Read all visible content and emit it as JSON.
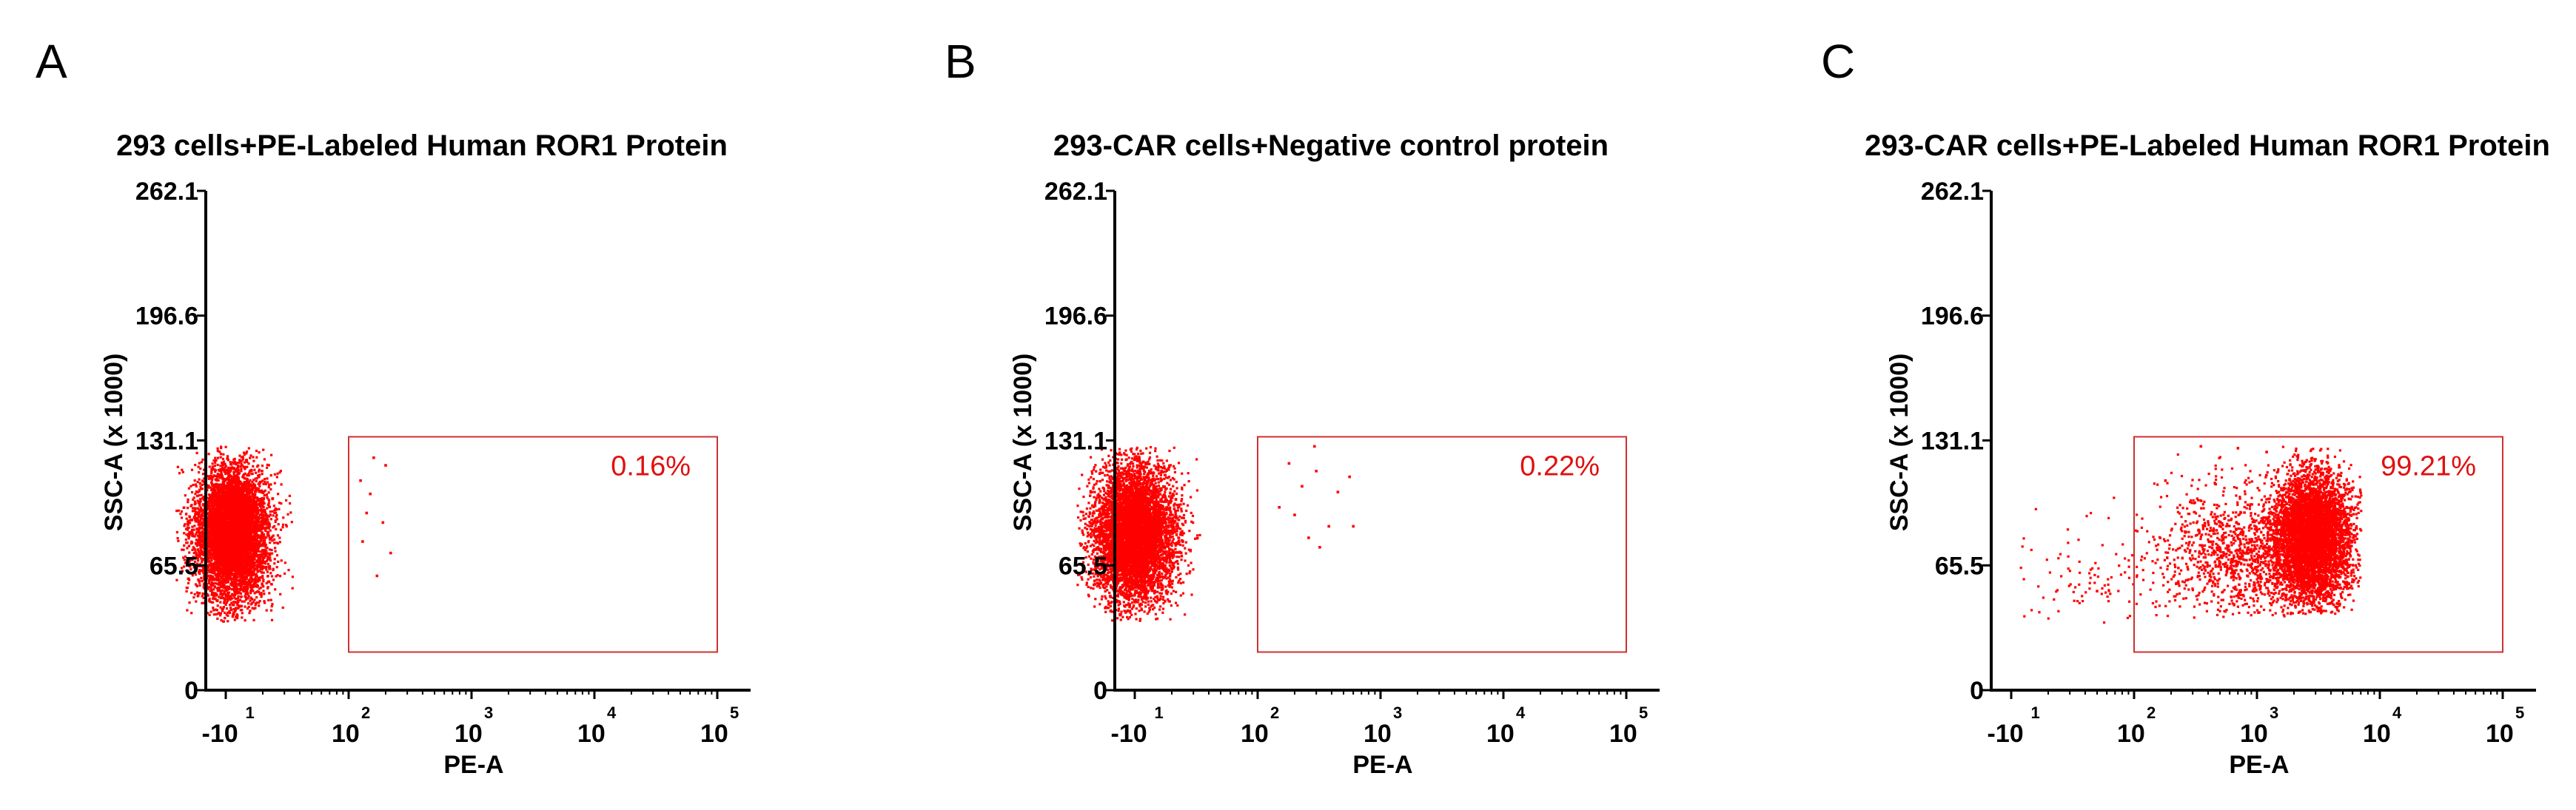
{
  "chart_data": [
    {
      "type": "scatter",
      "panel_letter": "A",
      "title": "293 cells+PE-Labeled Human ROR1 Protein",
      "xlabel": "PE-A",
      "ylabel": "SSC-A (x 1000)",
      "x_scale": "log",
      "x_tick_labels": [
        {
          "base": "-10",
          "exp": "1"
        },
        {
          "base": "10",
          "exp": "2"
        },
        {
          "base": "10",
          "exp": "3"
        },
        {
          "base": "10",
          "exp": "4"
        },
        {
          "base": "10",
          "exp": "5"
        }
      ],
      "y_ticks": [
        "0",
        "65.5",
        "131.1",
        "196.6",
        "262.1"
      ],
      "ylim": [
        0,
        262.1
      ],
      "gate": {
        "label": "0.16%",
        "x_range": [
          100,
          100000
        ],
        "y_range": [
          20,
          133
        ]
      },
      "populations": [
        {
          "name": "main",
          "count": 6500,
          "log_x_center": 1.05,
          "log_x_sd": 0.15,
          "y_center": 82,
          "y_sd": 17,
          "log_x_range": [
            0.6,
            1.55
          ],
          "y_range": [
            36,
            128
          ]
        }
      ],
      "scatter_points": [
        {
          "x": 160,
          "y": 122
        },
        {
          "x": 125,
          "y": 110
        },
        {
          "x": 150,
          "y": 103
        },
        {
          "x": 140,
          "y": 93
        },
        {
          "x": 190,
          "y": 88
        },
        {
          "x": 130,
          "y": 78
        },
        {
          "x": 220,
          "y": 72
        },
        {
          "x": 170,
          "y": 60
        },
        {
          "x": 200,
          "y": 118
        }
      ],
      "colors": {
        "points": "#ff0000",
        "gate": "#d03030",
        "label": "#e01010"
      }
    },
    {
      "type": "scatter",
      "panel_letter": "B",
      "title": "293-CAR cells+Negative control protein",
      "xlabel": "PE-A",
      "ylabel": "SSC-A (x 1000)",
      "x_scale": "log",
      "x_tick_labels": [
        {
          "base": "-10",
          "exp": "1"
        },
        {
          "base": "10",
          "exp": "2"
        },
        {
          "base": "10",
          "exp": "3"
        },
        {
          "base": "10",
          "exp": "4"
        },
        {
          "base": "10",
          "exp": "5"
        }
      ],
      "y_ticks": [
        "0",
        "65.5",
        "131.1",
        "196.6",
        "262.1"
      ],
      "ylim": [
        0,
        262.1
      ],
      "gate": {
        "label": "0.22%",
        "x_range": [
          100,
          100000
        ],
        "y_range": [
          20,
          133
        ]
      },
      "populations": [
        {
          "name": "main",
          "count": 6500,
          "log_x_center": 1.0,
          "log_x_sd": 0.16,
          "y_center": 82,
          "y_sd": 17,
          "log_x_range": [
            0.5,
            1.55
          ],
          "y_range": [
            36,
            128
          ]
        }
      ],
      "scatter_points": [
        {
          "x": 290,
          "y": 128
        },
        {
          "x": 180,
          "y": 119
        },
        {
          "x": 300,
          "y": 115
        },
        {
          "x": 230,
          "y": 107
        },
        {
          "x": 450,
          "y": 104
        },
        {
          "x": 560,
          "y": 112
        },
        {
          "x": 150,
          "y": 96
        },
        {
          "x": 200,
          "y": 92
        },
        {
          "x": 380,
          "y": 86
        },
        {
          "x": 600,
          "y": 86
        },
        {
          "x": 260,
          "y": 80
        },
        {
          "x": 320,
          "y": 75
        }
      ],
      "colors": {
        "points": "#ff0000",
        "gate": "#d03030",
        "label": "#e01010"
      }
    },
    {
      "type": "scatter",
      "panel_letter": "C",
      "title": "293-CAR cells+PE-Labeled Human ROR1 Protein",
      "xlabel": "PE-A",
      "ylabel": "SSC-A (x 1000)",
      "x_scale": "log",
      "x_tick_labels": [
        {
          "base": "-10",
          "exp": "1"
        },
        {
          "base": "10",
          "exp": "2"
        },
        {
          "base": "10",
          "exp": "3"
        },
        {
          "base": "10",
          "exp": "4"
        },
        {
          "base": "10",
          "exp": "5"
        }
      ],
      "y_ticks": [
        "0",
        "65.5",
        "131.1",
        "196.6",
        "262.1"
      ],
      "ylim": [
        0,
        262.1
      ],
      "gate": {
        "label": "99.21%",
        "x_range": [
          100,
          100000
        ],
        "y_range": [
          20,
          133
        ]
      },
      "populations": [
        {
          "name": "dense",
          "count": 5200,
          "log_x_center": 3.45,
          "log_x_sd": 0.16,
          "y_center": 80,
          "y_sd": 17,
          "log_x_range": [
            2.9,
            3.85
          ],
          "y_range": [
            40,
            128
          ]
        },
        {
          "name": "tail",
          "count": 1300,
          "log_x_center": 2.9,
          "log_x_sd": 0.38,
          "y_center": 72,
          "y_sd": 18,
          "log_x_range": [
            2.0,
            3.8
          ],
          "y_range": [
            38,
            128
          ]
        },
        {
          "name": "sparse-low",
          "count": 90,
          "log_x_center": 1.7,
          "log_x_sd": 0.35,
          "y_center": 60,
          "y_sd": 14,
          "log_x_range": [
            0.9,
            2.1
          ],
          "y_range": [
            35,
            110
          ]
        }
      ],
      "scatter_points": [
        {
          "x": 50,
          "y": 52
        },
        {
          "x": 180,
          "y": 110
        },
        {
          "x": 350,
          "y": 128
        },
        {
          "x": 700,
          "y": 127
        },
        {
          "x": 1200,
          "y": 125
        }
      ],
      "colors": {
        "points": "#ff0000",
        "gate": "#d03030",
        "label": "#e01010"
      }
    }
  ]
}
